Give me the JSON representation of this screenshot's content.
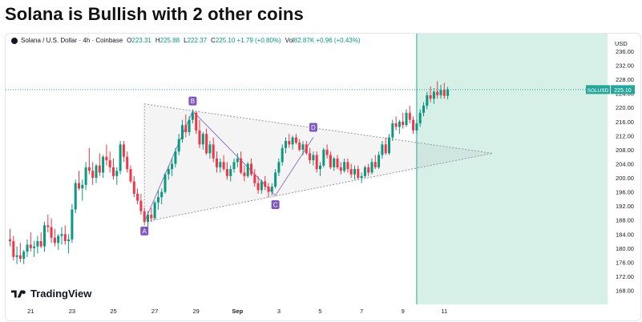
{
  "headline": "Solana is Bullish with 2 other coins",
  "legend": {
    "symbol": "Solana / U.S. Dollar · 4h · Coinbase",
    "o_key": "O",
    "o_val": "223.31",
    "h_key": "H",
    "h_val": "225.88",
    "l_key": "L",
    "l_val": "222.37",
    "c_key": "C",
    "c_val": "225.10 +1.79 (+0.80%)",
    "vol_key": "Vol",
    "vol_val": "82.87K +0.96 (+0.43%)"
  },
  "brand": "TradingView",
  "colors": {
    "up": "#089981",
    "down": "#f23645",
    "zone": "#d6f0e8",
    "zone_edge": "#26a69a",
    "pattern": "#7e57c2",
    "price_line": "#26a69a"
  },
  "chart_data": {
    "type": "candlestick",
    "title": "Solana / U.S. Dollar · 4h · Coinbase",
    "ylabel": "USD",
    "ylim": [
      165,
      238
    ],
    "y_ticks": [
      168,
      172,
      176,
      180,
      184,
      188,
      192,
      196,
      200,
      204,
      208,
      212,
      216,
      220,
      224,
      228,
      232,
      236
    ],
    "x_ticks": [
      "21",
      "23",
      "25",
      "27",
      "29",
      "Sep",
      "3",
      "5",
      "7",
      "9",
      "11"
    ],
    "x_tick_bar_index": [
      6,
      18,
      30,
      42,
      54,
      66,
      78,
      90,
      102,
      114,
      126
    ],
    "last_price": {
      "label": "SOLUSD",
      "value": "225.10",
      "price": 225.1
    },
    "candles": [
      [
        182.5,
        185.5,
        180.5,
        182.0
      ],
      [
        182.0,
        183.5,
        176.5,
        177.5
      ],
      [
        177.5,
        180.5,
        175.5,
        178.0
      ],
      [
        178.0,
        181.5,
        176.0,
        177.0
      ],
      [
        177.0,
        179.5,
        175.5,
        179.0
      ],
      [
        179.0,
        182.5,
        177.5,
        181.0
      ],
      [
        181.0,
        184.5,
        179.0,
        180.0
      ],
      [
        180.0,
        182.0,
        177.5,
        180.5
      ],
      [
        180.5,
        183.5,
        178.5,
        182.0
      ],
      [
        182.0,
        184.5,
        180.0,
        180.5
      ],
      [
        180.5,
        187.5,
        179.0,
        186.5
      ],
      [
        186.5,
        189.5,
        184.5,
        186.0
      ],
      [
        186.0,
        188.5,
        181.5,
        183.0
      ],
      [
        183.0,
        185.5,
        180.5,
        181.5
      ],
      [
        181.5,
        184.0,
        179.5,
        183.5
      ],
      [
        183.5,
        186.0,
        181.0,
        184.0
      ],
      [
        184.0,
        186.5,
        181.0,
        182.0
      ],
      [
        182.0,
        184.0,
        178.5,
        182.5
      ],
      [
        182.5,
        192.5,
        181.5,
        191.0
      ],
      [
        191.0,
        199.5,
        190.0,
        198.5
      ],
      [
        198.5,
        202.0,
        196.5,
        197.0
      ],
      [
        197.0,
        199.5,
        193.5,
        198.0
      ],
      [
        198.0,
        204.5,
        196.5,
        203.0
      ],
      [
        203.0,
        208.5,
        201.0,
        202.0
      ],
      [
        202.0,
        204.5,
        198.0,
        200.0
      ],
      [
        200.0,
        204.0,
        198.5,
        203.5
      ],
      [
        203.5,
        207.0,
        200.5,
        201.5
      ],
      [
        201.5,
        206.5,
        200.0,
        206.0
      ],
      [
        206.0,
        209.5,
        203.5,
        205.0
      ],
      [
        205.0,
        207.5,
        201.5,
        203.0
      ],
      [
        203.0,
        205.5,
        199.5,
        200.5
      ],
      [
        200.5,
        203.0,
        198.0,
        202.0
      ],
      [
        202.0,
        210.5,
        201.0,
        209.5
      ],
      [
        209.5,
        210.5,
        204.5,
        206.0
      ],
      [
        206.0,
        207.5,
        201.5,
        202.5
      ],
      [
        202.5,
        203.5,
        198.5,
        199.0
      ],
      [
        199.0,
        200.5,
        194.5,
        195.5
      ],
      [
        195.5,
        197.0,
        192.5,
        193.5
      ],
      [
        193.5,
        195.5,
        189.5,
        190.5
      ],
      [
        190.5,
        191.5,
        186.5,
        187.5
      ],
      [
        187.5,
        190.5,
        186.0,
        189.5
      ],
      [
        189.5,
        191.5,
        187.5,
        188.5
      ],
      [
        188.5,
        193.5,
        188.0,
        193.0
      ],
      [
        193.0,
        196.5,
        191.0,
        194.5
      ],
      [
        194.5,
        197.0,
        192.5,
        196.0
      ],
      [
        196.0,
        201.5,
        195.5,
        201.0
      ],
      [
        201.0,
        203.5,
        199.5,
        202.5
      ],
      [
        202.5,
        205.5,
        200.5,
        204.0
      ],
      [
        204.0,
        208.5,
        203.0,
        207.5
      ],
      [
        207.5,
        212.5,
        206.5,
        211.0
      ],
      [
        211.0,
        216.5,
        210.0,
        215.0
      ],
      [
        215.0,
        218.0,
        211.5,
        213.0
      ],
      [
        213.0,
        217.5,
        212.0,
        216.5
      ],
      [
        216.5,
        219.5,
        215.5,
        218.5
      ],
      [
        218.5,
        219.0,
        212.5,
        213.5
      ],
      [
        213.5,
        216.5,
        208.5,
        209.5
      ],
      [
        209.5,
        213.0,
        208.0,
        212.5
      ],
      [
        212.5,
        214.0,
        206.5,
        207.0
      ],
      [
        207.0,
        210.5,
        205.5,
        209.5
      ],
      [
        209.5,
        211.5,
        204.5,
        205.5
      ],
      [
        205.5,
        207.5,
        201.5,
        203.0
      ],
      [
        203.0,
        205.5,
        201.5,
        204.5
      ],
      [
        204.5,
        206.5,
        202.0,
        202.5
      ],
      [
        202.5,
        204.5,
        199.5,
        200.5
      ],
      [
        200.5,
        203.5,
        199.0,
        202.5
      ],
      [
        202.5,
        205.5,
        201.5,
        204.5
      ],
      [
        204.5,
        207.0,
        203.0,
        205.5
      ],
      [
        205.5,
        207.5,
        201.0,
        201.5
      ],
      [
        201.5,
        203.5,
        199.0,
        200.5
      ],
      [
        200.5,
        204.5,
        200.0,
        204.0
      ],
      [
        204.0,
        205.5,
        200.5,
        201.0
      ],
      [
        201.0,
        202.5,
        197.5,
        198.5
      ],
      [
        198.5,
        200.5,
        195.5,
        196.5
      ],
      [
        196.5,
        199.5,
        195.5,
        199.0
      ],
      [
        199.0,
        200.5,
        196.5,
        197.5
      ],
      [
        197.5,
        198.5,
        194.5,
        196.0
      ],
      [
        196.0,
        198.5,
        195.0,
        197.5
      ],
      [
        197.5,
        202.5,
        197.0,
        201.5
      ],
      [
        201.5,
        205.5,
        200.5,
        204.5
      ],
      [
        204.5,
        209.5,
        203.5,
        208.5
      ],
      [
        208.5,
        211.5,
        207.0,
        210.5
      ],
      [
        210.5,
        212.5,
        208.5,
        209.5
      ],
      [
        209.5,
        212.0,
        208.0,
        211.5
      ],
      [
        211.5,
        212.5,
        209.5,
        210.0
      ],
      [
        210.0,
        211.0,
        207.5,
        208.0
      ],
      [
        208.0,
        210.5,
        206.5,
        209.5
      ],
      [
        209.5,
        210.5,
        206.5,
        207.0
      ],
      [
        207.0,
        208.5,
        204.0,
        205.0
      ],
      [
        205.0,
        207.5,
        203.5,
        206.5
      ],
      [
        206.5,
        207.5,
        201.5,
        202.5
      ],
      [
        202.5,
        204.5,
        200.5,
        203.5
      ],
      [
        203.5,
        208.5,
        203.0,
        208.0
      ],
      [
        208.0,
        209.5,
        205.5,
        206.5
      ],
      [
        206.5,
        207.5,
        202.5,
        203.0
      ],
      [
        203.0,
        206.0,
        202.0,
        205.5
      ],
      [
        205.5,
        206.5,
        202.5,
        203.0
      ],
      [
        203.0,
        204.5,
        201.0,
        202.0
      ],
      [
        202.0,
        205.5,
        201.5,
        204.5
      ],
      [
        204.5,
        205.5,
        201.5,
        202.5
      ],
      [
        202.5,
        204.0,
        200.0,
        201.0
      ],
      [
        201.0,
        203.5,
        199.5,
        202.5
      ],
      [
        202.5,
        203.5,
        199.5,
        200.0
      ],
      [
        200.0,
        201.5,
        198.5,
        200.5
      ],
      [
        200.5,
        203.5,
        200.0,
        203.0
      ],
      [
        203.0,
        204.0,
        200.5,
        201.5
      ],
      [
        201.5,
        205.5,
        201.0,
        204.5
      ],
      [
        204.5,
        206.5,
        202.5,
        203.0
      ],
      [
        203.0,
        207.5,
        202.5,
        206.5
      ],
      [
        206.5,
        210.5,
        205.5,
        209.5
      ],
      [
        209.5,
        211.5,
        206.5,
        207.0
      ],
      [
        207.0,
        212.5,
        206.5,
        211.5
      ],
      [
        211.5,
        216.5,
        210.5,
        215.5
      ],
      [
        215.5,
        217.5,
        213.5,
        214.5
      ],
      [
        214.5,
        216.5,
        212.5,
        216.0
      ],
      [
        216.0,
        218.5,
        214.0,
        215.0
      ],
      [
        215.0,
        219.5,
        214.5,
        218.5
      ],
      [
        218.5,
        220.5,
        215.5,
        216.5
      ],
      [
        216.5,
        217.5,
        212.5,
        213.5
      ],
      [
        213.5,
        216.5,
        212.5,
        215.5
      ],
      [
        215.5,
        219.5,
        214.5,
        218.5
      ],
      [
        218.5,
        221.5,
        217.5,
        220.5
      ],
      [
        220.5,
        224.5,
        219.5,
        223.5
      ],
      [
        223.5,
        226.0,
        221.5,
        222.5
      ],
      [
        222.5,
        225.5,
        221.0,
        224.5
      ],
      [
        224.5,
        227.5,
        222.5,
        223.5
      ],
      [
        223.5,
        226.5,
        222.5,
        225.0
      ],
      [
        225.0,
        227.0,
        222.5,
        223.31
      ],
      [
        223.31,
        225.88,
        222.37,
        225.1
      ]
    ],
    "patterns": [
      {
        "name": "ABCD",
        "points": [
          {
            "label": "A",
            "bar": 39,
            "price": 187.5
          },
          {
            "label": "B",
            "bar": 53,
            "price": 219.0
          },
          {
            "label": "C",
            "bar": 77,
            "price": 195.0
          },
          {
            "label": "D",
            "bar": 88,
            "price": 211.5
          }
        ]
      }
    ],
    "triangle": {
      "upper_start": {
        "bar": 39,
        "price": 221.0
      },
      "lower_start": {
        "bar": 39,
        "price": 187.5
      },
      "apex": {
        "bar": 140,
        "price": 207.0
      }
    },
    "projection_zone": {
      "start_bar": 118
    }
  }
}
